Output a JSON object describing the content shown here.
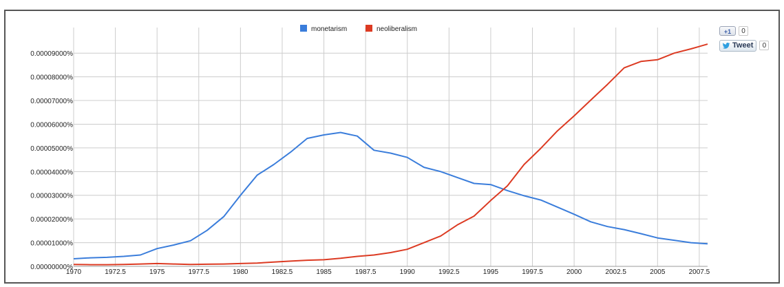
{
  "chart_data": {
    "type": "line",
    "x_ticks": [
      "1970",
      "1972.5",
      "1975",
      "1977.5",
      "1980",
      "1982.5",
      "1985",
      "1987.5",
      "1990",
      "1992.5",
      "1995",
      "1997.5",
      "2000",
      "2002.5",
      "2005",
      "2007.5"
    ],
    "y_ticks": [
      "0.00000000%",
      "0.00001000%",
      "0.00002000%",
      "0.00003000%",
      "0.00004000%",
      "0.00005000%",
      "0.00006000%",
      "0.00007000%",
      "0.00008000%",
      "0.00009000%"
    ],
    "xlim": [
      1970,
      2008
    ],
    "ylim": [
      0,
      9.5e-05
    ],
    "grid": true,
    "legend_position": "top-center",
    "series": [
      {
        "name": "monetarism",
        "color": "#3a7ddb",
        "points": [
          [
            1970,
            3.2e-06
          ],
          [
            1971,
            3.6e-06
          ],
          [
            1972,
            3.8e-06
          ],
          [
            1973,
            4.2e-06
          ],
          [
            1974,
            4.8e-06
          ],
          [
            1975,
            7.5e-06
          ],
          [
            1976,
            9e-06
          ],
          [
            1977,
            1.08e-05
          ],
          [
            1978,
            1.52e-05
          ],
          [
            1979,
            2.1e-05
          ],
          [
            1980,
            3e-05
          ],
          [
            1981,
            3.85e-05
          ],
          [
            1982,
            4.3e-05
          ],
          [
            1983,
            4.82e-05
          ],
          [
            1984,
            5.4e-05
          ],
          [
            1985,
            5.55e-05
          ],
          [
            1986,
            5.65e-05
          ],
          [
            1987,
            5.5e-05
          ],
          [
            1988,
            4.9e-05
          ],
          [
            1989,
            4.78e-05
          ],
          [
            1990,
            4.6e-05
          ],
          [
            1991,
            4.18e-05
          ],
          [
            1992,
            4e-05
          ],
          [
            1993,
            3.75e-05
          ],
          [
            1994,
            3.5e-05
          ],
          [
            1995,
            3.45e-05
          ],
          [
            1996,
            3.2e-05
          ],
          [
            1997,
            2.98e-05
          ],
          [
            1998,
            2.8e-05
          ],
          [
            1999,
            2.5e-05
          ],
          [
            2000,
            2.2e-05
          ],
          [
            2001,
            1.88e-05
          ],
          [
            2002,
            1.68e-05
          ],
          [
            2003,
            1.55e-05
          ],
          [
            2004,
            1.38e-05
          ],
          [
            2005,
            1.2e-05
          ],
          [
            2006,
            1.1e-05
          ],
          [
            2007,
            1e-05
          ],
          [
            2008,
            9.5e-06
          ]
        ]
      },
      {
        "name": "neoliberalism",
        "color": "#dc3a22",
        "points": [
          [
            1970,
            8e-07
          ],
          [
            1971,
            7e-07
          ],
          [
            1972,
            7e-07
          ],
          [
            1973,
            8e-07
          ],
          [
            1974,
            1e-06
          ],
          [
            1975,
            1.2e-06
          ],
          [
            1976,
            1e-06
          ],
          [
            1977,
            8e-07
          ],
          [
            1978,
            9e-07
          ],
          [
            1979,
            1e-06
          ],
          [
            1980,
            1.2e-06
          ],
          [
            1981,
            1.4e-06
          ],
          [
            1982,
            1.8e-06
          ],
          [
            1983,
            2.2e-06
          ],
          [
            1984,
            2.6e-06
          ],
          [
            1985,
            2.8e-06
          ],
          [
            1986,
            3.4e-06
          ],
          [
            1987,
            4.2e-06
          ],
          [
            1988,
            4.8e-06
          ],
          [
            1989,
            5.8e-06
          ],
          [
            1990,
            7.2e-06
          ],
          [
            1991,
            1e-05
          ],
          [
            1992,
            1.28e-05
          ],
          [
            1993,
            1.75e-05
          ],
          [
            1994,
            2.12e-05
          ],
          [
            1995,
            2.78e-05
          ],
          [
            1996,
            3.4e-05
          ],
          [
            1997,
            4.3e-05
          ],
          [
            1998,
            4.98e-05
          ],
          [
            1999,
            5.72e-05
          ],
          [
            2000,
            6.35e-05
          ],
          [
            2001,
            7.02e-05
          ],
          [
            2002,
            7.68e-05
          ],
          [
            2003,
            8.38e-05
          ],
          [
            2004,
            8.65e-05
          ],
          [
            2005,
            8.72e-05
          ],
          [
            2006,
            9e-05
          ],
          [
            2007,
            9.18e-05
          ],
          [
            2008,
            9.38e-05
          ]
        ]
      }
    ]
  },
  "social": {
    "plusone_label": "+1",
    "plusone_count": "0",
    "tweet_label": "Tweet",
    "tweet_count": "0"
  }
}
